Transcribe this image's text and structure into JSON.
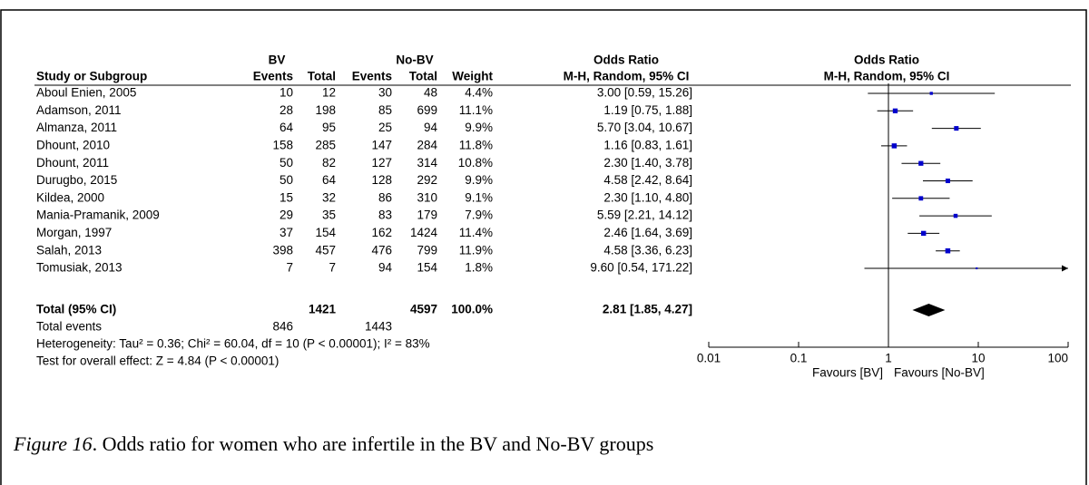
{
  "chart_data": {
    "type": "forest",
    "group_headers": [
      "BV",
      "No-BV",
      "Odds Ratio",
      "Odds Ratio"
    ],
    "column_headers": [
      "Study or Subgroup",
      "Events",
      "Total",
      "Events",
      "Total",
      "Weight",
      "M-H, Random, 95% CI",
      "M-H, Random, 95% CI"
    ],
    "studies": [
      "Aboul Enien, 2005",
      "Adamson, 2011",
      "Almanza, 2011",
      "Dhount, 2010",
      "Dhount, 2011",
      "Durugbo, 2015",
      "Kildea, 2000",
      "Mania-Pramanik, 2009",
      "Morgan, 1997",
      "Salah, 2013",
      "Tomusiak, 2013"
    ],
    "bv_events": [
      10,
      28,
      64,
      158,
      50,
      50,
      15,
      29,
      37,
      398,
      7
    ],
    "bv_total": [
      12,
      198,
      95,
      285,
      82,
      64,
      32,
      35,
      154,
      457,
      7
    ],
    "nobv_events": [
      30,
      85,
      25,
      147,
      127,
      128,
      86,
      83,
      162,
      476,
      94
    ],
    "nobv_total": [
      48,
      699,
      94,
      284,
      314,
      292,
      310,
      179,
      1424,
      799,
      154
    ],
    "weight": [
      4.4,
      11.1,
      9.9,
      11.8,
      10.8,
      9.9,
      9.1,
      7.9,
      11.4,
      11.9,
      1.8
    ],
    "weight_labels": [
      "4.4%",
      "11.1%",
      "9.9%",
      "11.8%",
      "10.8%",
      "9.9%",
      "9.1%",
      "7.9%",
      "11.4%",
      "11.9%",
      "1.8%"
    ],
    "or": [
      3.0,
      1.19,
      5.7,
      1.16,
      2.3,
      4.58,
      2.3,
      5.59,
      2.46,
      4.58,
      9.6
    ],
    "ci_low": [
      0.59,
      0.75,
      3.04,
      0.83,
      1.4,
      2.42,
      1.1,
      2.21,
      1.64,
      3.36,
      0.54
    ],
    "ci_high": [
      15.26,
      1.88,
      10.67,
      1.61,
      3.78,
      8.64,
      4.8,
      14.12,
      3.69,
      6.23,
      171.22
    ],
    "or_labels": [
      "3.00 [0.59, 15.26]",
      "1.19 [0.75, 1.88]",
      "5.70 [3.04, 10.67]",
      "1.16 [0.83, 1.61]",
      "2.30 [1.40, 3.78]",
      "4.58 [2.42, 8.64]",
      "2.30 [1.10, 4.80]",
      "5.59 [2.21, 14.12]",
      "2.46 [1.64, 3.69]",
      "4.58 [3.36, 6.23]",
      "9.60 [0.54, 171.22]"
    ],
    "total": {
      "label": "Total (95% CI)",
      "bv_total": 1421,
      "nobv_total": 4597,
      "weight": 100.0,
      "weight_label": "100.0%",
      "or": 2.81,
      "ci_low": 1.85,
      "ci_high": 4.27,
      "or_label": "2.81 [1.85, 4.27]"
    },
    "total_events": {
      "label": "Total events",
      "bv": 846,
      "nobv": 1443
    },
    "heterogeneity": "Heterogeneity: Tau² = 0.36; Chi² = 60.04, df = 10 (P < 0.00001); I² = 83%",
    "overall_effect": "Test for overall effect: Z = 4.84 (P < 0.00001)",
    "xscale": "log",
    "xlim": [
      0.01,
      100
    ],
    "xticks": [
      0.01,
      0.1,
      1,
      10,
      100
    ],
    "favours_left": "Favours [BV]",
    "favours_right": "Favours [No-BV]",
    "color": "#0000cc"
  },
  "caption": {
    "label": "Figure 16",
    "text": ". Odds ratio for women who are infertile in the BV and No-BV groups"
  }
}
